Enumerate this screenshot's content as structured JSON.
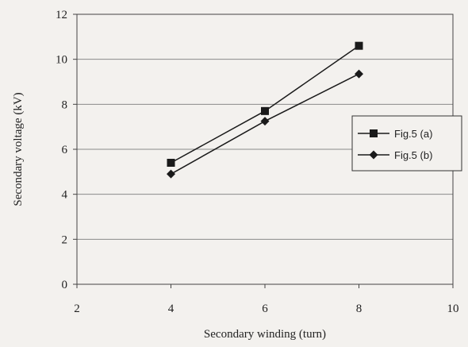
{
  "chart_data": {
    "type": "line",
    "xlabel": "Secondary winding (turn)",
    "ylabel": "Secondary voltage (kV)",
    "xlim": [
      2,
      10
    ],
    "ylim": [
      0,
      12
    ],
    "xticks": [
      2,
      4,
      6,
      8,
      10
    ],
    "yticks": [
      0,
      2,
      4,
      6,
      8,
      10,
      12
    ],
    "grid": "horizontal",
    "legend_position": "right",
    "series": [
      {
        "name": "Fig.5 (a)",
        "marker": "square",
        "color": "#1a1a1a",
        "x": [
          4,
          6,
          8
        ],
        "y": [
          5.4,
          7.7,
          10.6
        ]
      },
      {
        "name": "Fig.5 (b)",
        "marker": "diamond",
        "color": "#1a1a1a",
        "x": [
          4,
          6,
          8
        ],
        "y": [
          4.9,
          7.25,
          9.35
        ]
      }
    ]
  }
}
